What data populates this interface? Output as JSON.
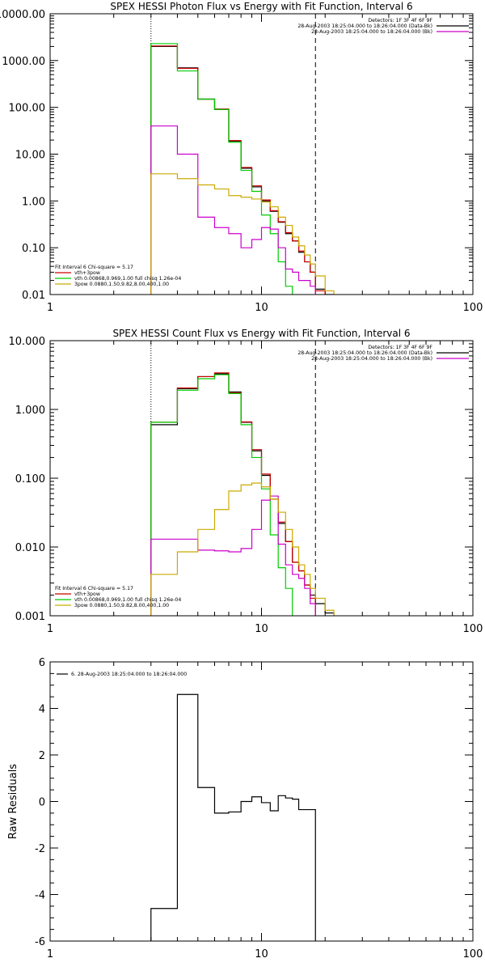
{
  "chart_data": [
    {
      "type": "line",
      "step": true,
      "title": "SPEX HESSI Photon Flux vs Energy with Fit Function, Interval 6",
      "xscale": "log",
      "yscale": "log",
      "xlim": [
        1,
        100
      ],
      "ylim": [
        0.01,
        10000
      ],
      "xticks": [
        1,
        10,
        100
      ],
      "xtick_labels": [
        "1",
        "10",
        "100"
      ],
      "yticks": [
        0.01,
        0.1,
        1,
        10,
        100,
        1000,
        10000
      ],
      "ytick_labels": [
        "0.01",
        "0.10",
        "1.00",
        "10.00",
        "100.00",
        "1000.00",
        "10000.00"
      ],
      "vlines": [
        {
          "x": 3.0,
          "style": "dotted"
        },
        {
          "x": 18.0,
          "style": "dashed"
        }
      ],
      "legend_top_right": [
        {
          "text": "Detectors: 1F 3F 4F 6F 9F",
          "color": "#000000"
        },
        {
          "text": "28-Aug-2003 18:25:04.000 to 18:26:04.000 (Data-Bk)",
          "color": "#000000"
        },
        {
          "text": "28-Aug-2003 18:25:04.000 to 18:26:04.000 (Bk)",
          "color": "#cc00cc"
        }
      ],
      "legend_bottom_left": [
        {
          "text": "Fit Interval 6   Chi-square = 5.17",
          "color": "#000000"
        },
        {
          "text": "vth+3pow",
          "color": "#cc0000"
        },
        {
          "text": "vth 0.00868,0.969,1.00   full chisq 1.26e-04",
          "color": "#00cc00"
        },
        {
          "text": "3pow 0.0880,1.50,9.82,8.00,400,1.00",
          "color": "#ccaa00"
        }
      ],
      "series": [
        {
          "color": "#000000",
          "edges": [
            3.0,
            4.0,
            5.0,
            6.0,
            7.0,
            8.0,
            9.0,
            10.0,
            11.0,
            12.0,
            13.0,
            14.0,
            15.0,
            16.0,
            17.0,
            18.0,
            20.0,
            22.0
          ],
          "values": [
            2000,
            700,
            150,
            90,
            19,
            5,
            2,
            1,
            0.6,
            0.35,
            0.2,
            0.14,
            0.08,
            0.05,
            0.03,
            0.013,
            0.008
          ]
        },
        {
          "color": "#cc0000",
          "edges": [
            3.0,
            4.0,
            5.0,
            6.0,
            7.0,
            8.0,
            9.0,
            10.0,
            11.0,
            12.0,
            13.0,
            14.0,
            15.0,
            16.0,
            17.0,
            18.0,
            20.0
          ],
          "values": [
            2050,
            680,
            150,
            92,
            19.5,
            5.2,
            2.1,
            1.05,
            0.62,
            0.36,
            0.21,
            0.14,
            0.085,
            0.05,
            0.03,
            0.012
          ]
        },
        {
          "color": "#00cc00",
          "edges": [
            3.0,
            4.0,
            5.0,
            6.0,
            7.0,
            8.0,
            9.0,
            10.0,
            11.0,
            12.0,
            13.0,
            14.0
          ],
          "values": [
            2300,
            600,
            150,
            90,
            18,
            4.5,
            1.6,
            0.5,
            0.2,
            0.05,
            0.015
          ]
        },
        {
          "color": "#cc00cc",
          "edges": [
            3.0,
            4.0,
            5.0,
            6.0,
            7.0,
            8.0,
            9.0,
            10.0,
            11.0,
            12.0,
            13.0,
            14.0,
            15.0,
            16.0,
            17.0,
            18.0
          ],
          "values": [
            40,
            10,
            0.45,
            0.27,
            0.2,
            0.1,
            0.15,
            0.27,
            0.25,
            0.1,
            0.035,
            0.03,
            0.02,
            0.02,
            0.015
          ]
        },
        {
          "color": "#ccaa00",
          "edges": [
            3.0,
            4.0,
            5.0,
            6.0,
            7.0,
            8.0,
            9.0,
            10.0,
            11.0,
            12.0,
            13.0,
            14.0,
            15.0,
            16.0,
            17.0,
            18.0,
            20.0,
            22.0
          ],
          "values": [
            3.8,
            3.0,
            2.2,
            1.8,
            1.3,
            1.2,
            1.1,
            0.95,
            0.75,
            0.45,
            0.3,
            0.17,
            0.11,
            0.07,
            0.045,
            0.025,
            0.012
          ]
        }
      ]
    },
    {
      "type": "line",
      "step": true,
      "title": "SPEX HESSI Count Flux vs Energy with Fit Function, Interval 6",
      "xscale": "log",
      "yscale": "log",
      "xlim": [
        1,
        100
      ],
      "ylim": [
        0.001,
        10
      ],
      "xticks": [
        1,
        10,
        100
      ],
      "xtick_labels": [
        "1",
        "10",
        "100"
      ],
      "yticks": [
        0.001,
        0.01,
        0.1,
        1,
        10
      ],
      "ytick_labels": [
        "0.001",
        "0.010",
        "0.100",
        "1.000",
        "10.000"
      ],
      "vlines": [
        {
          "x": 3.0,
          "style": "dotted"
        },
        {
          "x": 18.0,
          "style": "dashed"
        }
      ],
      "legend_top_right": [
        {
          "text": "Detectors: 1F 3F 4F 6F 9F",
          "color": "#000000"
        },
        {
          "text": "28-Aug-2003 18:25:04.000 to 18:26:04.000 (Data-Bk)",
          "color": "#000000"
        },
        {
          "text": "28-Aug-2003 18:25:04.000 to 18:26:04.000 (Bk)",
          "color": "#cc00cc"
        }
      ],
      "legend_bottom_left": [
        {
          "text": "Fit Interval 6   Chi-square = 5.17",
          "color": "#000000"
        },
        {
          "text": "vth+3pow",
          "color": "#cc0000"
        },
        {
          "text": "vth 0.00868,0.969,1.00   full chisq 1.26e-04",
          "color": "#00cc00"
        },
        {
          "text": "3pow 0.0880,1.50,9.82,8.00,400,1.00",
          "color": "#ccaa00"
        }
      ],
      "series": [
        {
          "color": "#000000",
          "edges": [
            3.0,
            4.0,
            5.0,
            6.0,
            7.0,
            8.0,
            9.0,
            10.0,
            11.0,
            12.0,
            13.0,
            14.0,
            15.0,
            16.0,
            17.0,
            18.0,
            20.0,
            22.0
          ],
          "values": [
            0.6,
            2.0,
            3.0,
            3.3,
            1.8,
            0.65,
            0.25,
            0.11,
            0.05,
            0.022,
            0.012,
            0.006,
            0.0045,
            0.0028,
            0.002,
            0.0015,
            0.0011
          ]
        },
        {
          "color": "#cc0000",
          "edges": [
            3.0,
            4.0,
            5.0,
            6.0,
            7.0,
            8.0,
            9.0,
            10.0,
            11.0,
            12.0,
            13.0,
            14.0,
            15.0,
            16.0,
            17.0,
            18.0
          ],
          "values": [
            0.65,
            2.05,
            3.0,
            3.4,
            1.75,
            0.66,
            0.26,
            0.115,
            0.05,
            0.023,
            0.012,
            0.006,
            0.0045,
            0.0028,
            0.0018
          ]
        },
        {
          "color": "#00cc00",
          "edges": [
            3.0,
            4.0,
            5.0,
            6.0,
            7.0,
            8.0,
            9.0,
            10.0,
            11.0,
            12.0,
            13.0,
            14.0
          ],
          "values": [
            0.65,
            1.9,
            2.8,
            3.2,
            1.7,
            0.6,
            0.2,
            0.07,
            0.015,
            0.005,
            0.0025
          ]
        },
        {
          "color": "#cc00cc",
          "edges": [
            3.0,
            4.0,
            5.0,
            6.0,
            7.0,
            8.0,
            9.0,
            10.0,
            11.0,
            12.0,
            13.0,
            14.0,
            15.0,
            16.0,
            17.0,
            18.0
          ],
          "values": [
            0.013,
            0.013,
            0.009,
            0.0088,
            0.0085,
            0.0095,
            0.018,
            0.048,
            0.055,
            0.011,
            0.0055,
            0.004,
            0.0035,
            0.0025,
            0.0015
          ]
        },
        {
          "color": "#ccaa00",
          "edges": [
            3.0,
            4.0,
            5.0,
            6.0,
            7.0,
            8.0,
            9.0,
            10.0,
            11.0,
            12.0,
            13.0,
            14.0,
            15.0,
            16.0,
            17.0,
            18.0,
            20.0,
            22.0
          ],
          "values": [
            0.004,
            0.0085,
            0.018,
            0.035,
            0.065,
            0.08,
            0.085,
            0.075,
            0.05,
            0.032,
            0.018,
            0.01,
            0.0055,
            0.004,
            0.0025,
            0.0018,
            0.0012
          ]
        }
      ]
    },
    {
      "type": "line",
      "step": true,
      "title": "",
      "ylabel": "Raw Residuals",
      "xscale": "log",
      "yscale": "linear",
      "xlim": [
        1,
        100
      ],
      "ylim": [
        -6,
        6
      ],
      "xticks": [
        1,
        10,
        100
      ],
      "xtick_labels": [
        "1",
        "10",
        "100"
      ],
      "yticks": [
        -6,
        -4,
        -2,
        0,
        2,
        4,
        6
      ],
      "ytick_labels": [
        "-6",
        "-4",
        "-2",
        "0",
        "2",
        "4",
        "6"
      ],
      "legend_top_left": [
        {
          "text": "6. 28-Aug-2003 18:25:04.000 to 18:26:04.000",
          "color": "#000000"
        }
      ],
      "series": [
        {
          "color": "#000000",
          "edges": [
            3.0,
            4.0,
            5.0,
            6.0,
            7.0,
            8.0,
            9.0,
            10.0,
            11.0,
            12.0,
            13.0,
            14.0,
            15.0,
            16.0,
            17.0,
            18.0
          ],
          "values": [
            -4.6,
            4.6,
            0.6,
            -0.5,
            -0.45,
            0.0,
            0.2,
            -0.05,
            -0.4,
            0.25,
            0.15,
            0.1,
            -0.35,
            -0.35,
            -0.35
          ]
        }
      ]
    }
  ]
}
